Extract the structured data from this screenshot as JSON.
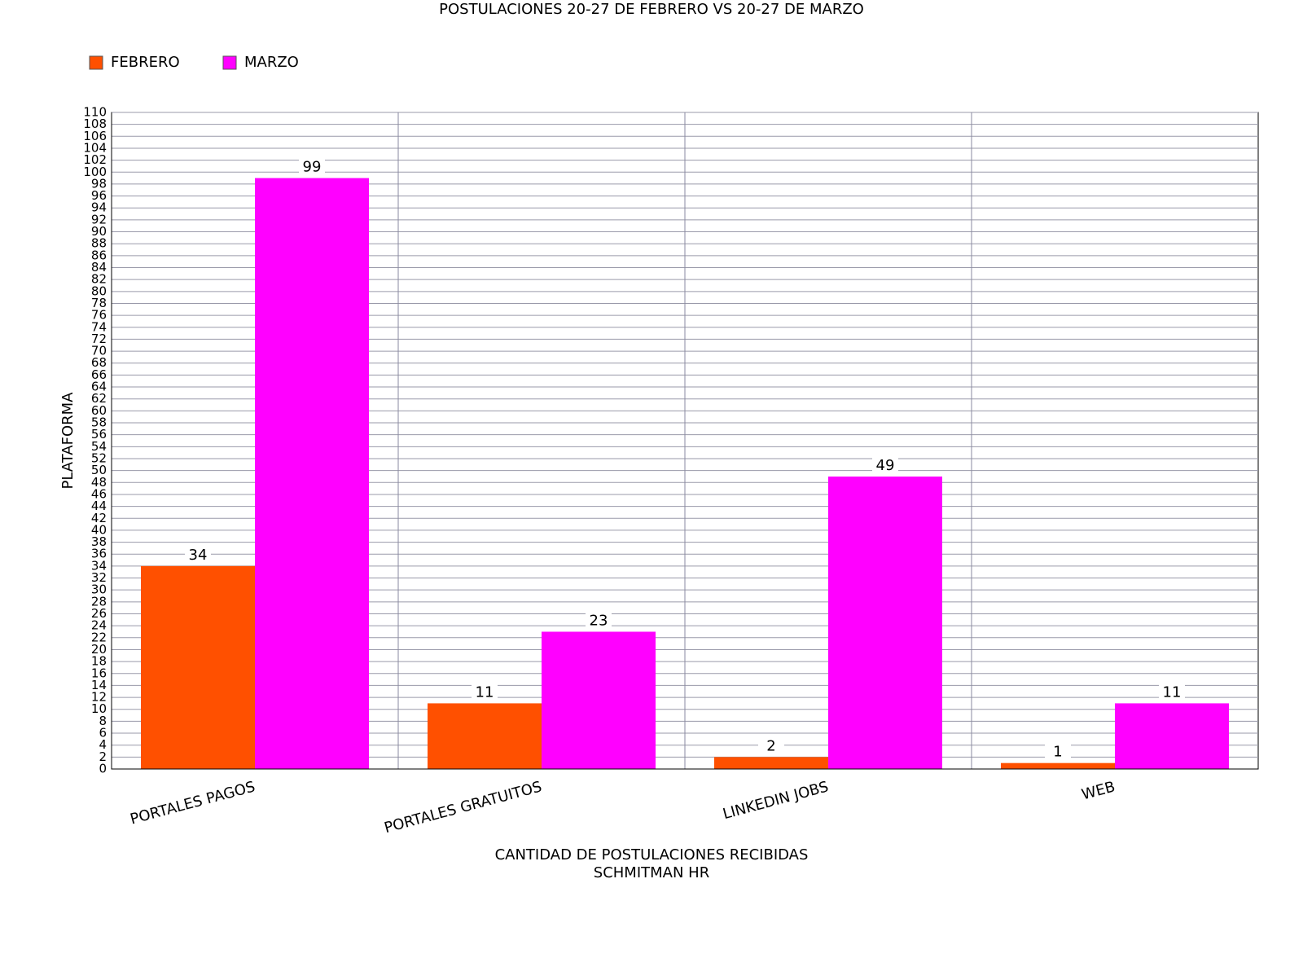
{
  "chart_data": {
    "type": "bar",
    "title": "POSTULACIONES 20-27 DE FEBRERO VS 20-27 DE MARZO",
    "x_label": [
      "CANTIDAD DE POSTULACIONES RECIBIDAS",
      "SCHMITMAN HR"
    ],
    "y_label": "PLATAFORMA",
    "categories": [
      "PORTALES PAGOS",
      "PORTALES GRATUITOS",
      "LINKEDIN JOBS",
      "WEB"
    ],
    "series": [
      {
        "name": "FEBRERO",
        "color": "#ff5000",
        "values": [
          34,
          11,
          2,
          1
        ]
      },
      {
        "name": "MARZO",
        "color": "#ff00ff",
        "values": [
          99,
          23,
          49,
          11
        ]
      }
    ],
    "ylim": [
      0,
      110
    ],
    "yticks": [
      0,
      2,
      4,
      6,
      8,
      10,
      12,
      14,
      16,
      18,
      20,
      22,
      24,
      26,
      28,
      30,
      32,
      34,
      36,
      38,
      40,
      42,
      44,
      46,
      48,
      50,
      52,
      54,
      56,
      58,
      60,
      62,
      64,
      66,
      68,
      70,
      72,
      74,
      76,
      78,
      80,
      82,
      84,
      86,
      88,
      90,
      92,
      94,
      96,
      98,
      100,
      102,
      104,
      106,
      108,
      110
    ],
    "grid": true,
    "legend": "top-left"
  }
}
